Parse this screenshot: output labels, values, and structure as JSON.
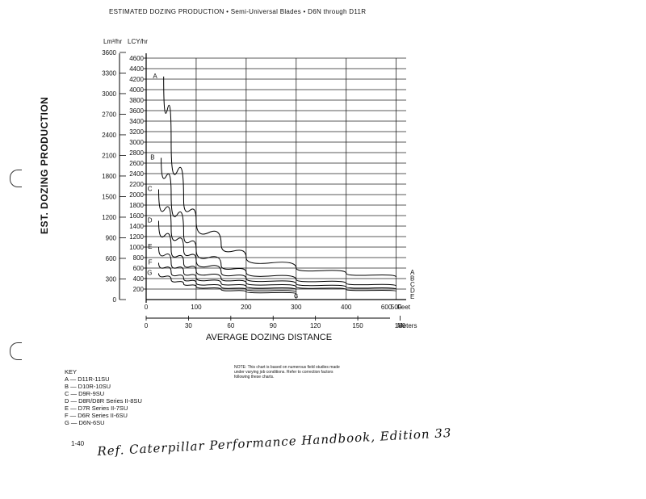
{
  "header": {
    "title": "ESTIMATED DOZING PRODUCTION • Semi-Universal Blades • D6N through D11R"
  },
  "chart_data": {
    "type": "line",
    "title": "ESTIMATED DOZING PRODUCTION • Semi-Universal Blades • D6N through D11R",
    "ylabel": "EST. DOZING PRODUCTION",
    "xlabel": "AVERAGE DOZING DISTANCE",
    "y_unit_left": "Lm³/hr",
    "y_unit_right": "LCY/hr",
    "x_unit_feet": "Feet",
    "x_unit_meters": "Meters",
    "ylim_lcy": [
      0,
      4600
    ],
    "xlim_feet": [
      0,
      520
    ],
    "lcy_ticks": [
      "4600",
      "4400",
      "4200",
      "4000",
      "3800",
      "3600",
      "3400",
      "3200",
      "3000",
      "2800",
      "2600",
      "2400",
      "2200",
      "2000",
      "1800",
      "1600",
      "1400",
      "1200",
      "1000",
      "800",
      "600",
      "400",
      "200"
    ],
    "lm3_ticks": [
      "3600",
      "3300",
      "3000",
      "2700",
      "2400",
      "2100",
      "1800",
      "1500",
      "1200",
      "900",
      "600",
      "300",
      "0"
    ],
    "feet_ticks": [
      "0",
      "100",
      "200",
      "300",
      "400",
      "500",
      "600"
    ],
    "meter_ticks": [
      "0",
      "30",
      "60",
      "90",
      "120",
      "150",
      "180"
    ],
    "series": [
      {
        "name": "A",
        "x": [
          35,
          50,
          75,
          100,
          150,
          200,
          300,
          400,
          500
        ],
        "y": [
          4250,
          3000,
          1900,
          1500,
          1050,
          800,
          600,
          500,
          430
        ]
      },
      {
        "name": "B",
        "x": [
          30,
          50,
          75,
          100,
          150,
          200,
          300,
          400,
          500
        ],
        "y": [
          2700,
          2000,
          1250,
          950,
          650,
          520,
          380,
          310,
          260
        ]
      },
      {
        "name": "C",
        "x": [
          25,
          50,
          75,
          100,
          150,
          200,
          300,
          400,
          500
        ],
        "y": [
          2100,
          1350,
          950,
          750,
          520,
          400,
          300,
          240,
          200
        ]
      },
      {
        "name": "D",
        "x": [
          25,
          50,
          75,
          100,
          150,
          200,
          300,
          400,
          500
        ],
        "y": [
          1500,
          950,
          700,
          550,
          400,
          320,
          240,
          190,
          160
        ]
      },
      {
        "name": "E",
        "x": [
          25,
          50,
          75,
          100,
          150,
          200,
          300
        ],
        "y": [
          1000,
          700,
          520,
          420,
          310,
          250,
          190
        ]
      },
      {
        "name": "F",
        "x": [
          25,
          50,
          75,
          100,
          150,
          200,
          300
        ],
        "y": [
          700,
          520,
          400,
          320,
          240,
          190,
          150
        ]
      },
      {
        "name": "G",
        "x": [
          25,
          50,
          75,
          100,
          150,
          200,
          300
        ],
        "y": [
          500,
          380,
          300,
          250,
          190,
          150,
          110
        ]
      }
    ],
    "curve_labels_left": [
      "A",
      "B",
      "C",
      "D",
      "E",
      "F",
      "G"
    ],
    "curve_labels_right": [
      "A",
      "B",
      "C",
      "D",
      "E"
    ],
    "g_end_label": "G"
  },
  "key": {
    "heading": "KEY",
    "rows": [
      "A — D11R-11SU",
      "B — D10R-10SU",
      "C — D9R-9SU",
      "D — D8R/D8R Series II-8SU",
      "E — D7R Series II-7SU",
      "F — D6R Series II-6SU",
      "G — D6N-6SU"
    ]
  },
  "note": "NOTE: This chart is based on numerous field studies made under varying job conditions. Refer to correction factors following these charts.",
  "footer": {
    "page_number": "1-40",
    "handwritten": "Ref. Caterpillar Performance Handbook, Edition 33"
  }
}
